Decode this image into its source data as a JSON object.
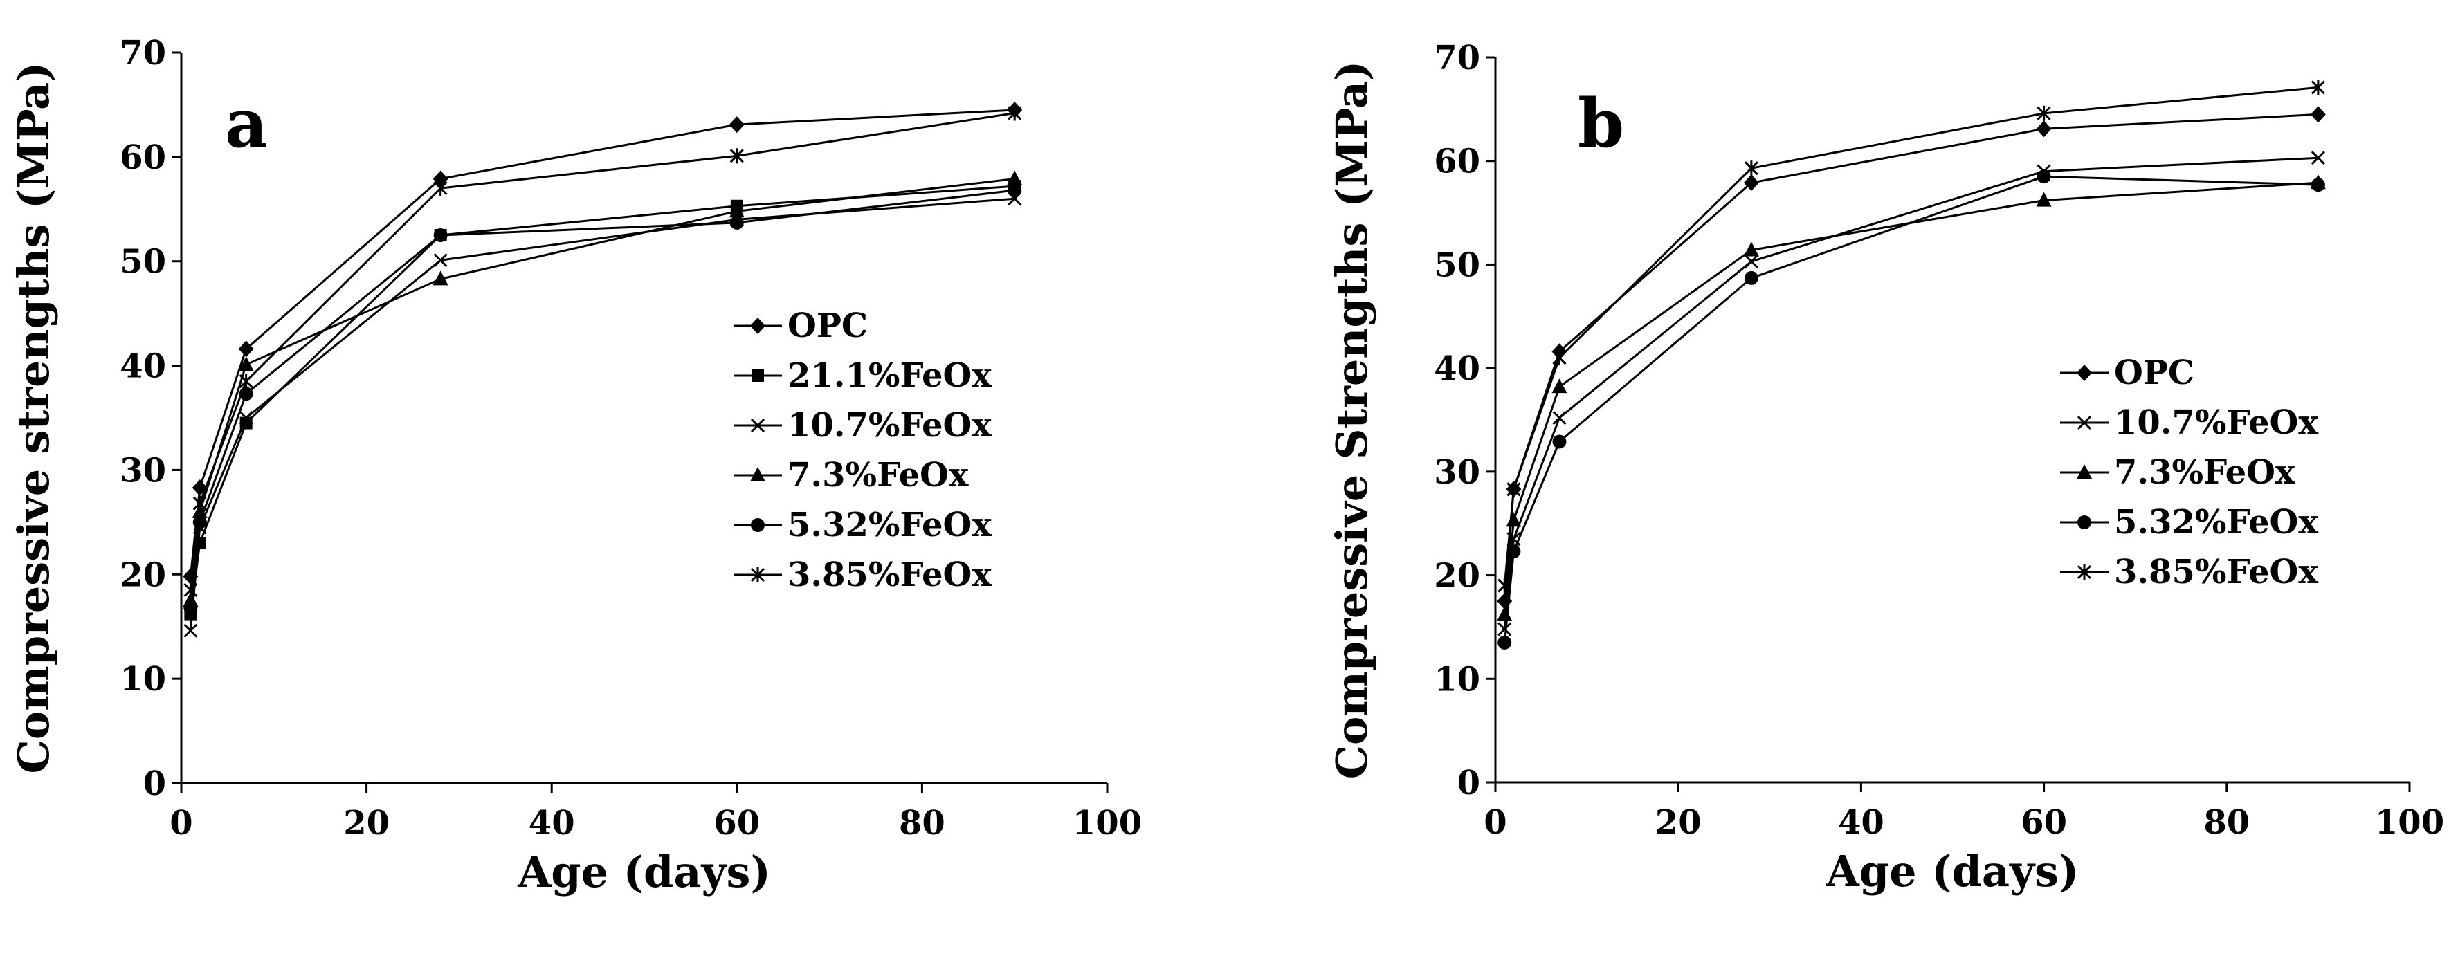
{
  "figure": {
    "background": "#ffffff",
    "line_color": "#000000"
  },
  "chart_data": [
    {
      "type": "line",
      "panel_label": "a",
      "xlabel": "Age (days)",
      "ylabel": "Compressive strengths (MPa)",
      "xlim": [
        0,
        100
      ],
      "ylim": [
        0,
        70
      ],
      "x_ticks": [
        "0",
        "20",
        "40",
        "60",
        "80",
        "100"
      ],
      "y_ticks": [
        "0",
        "10",
        "20",
        "30",
        "40",
        "50",
        "60",
        "70"
      ],
      "grid": false,
      "legend_position": "center-right",
      "x": [
        1,
        2,
        7,
        28,
        60,
        90
      ],
      "series": [
        {
          "name": "OPC",
          "marker": "diamond",
          "values": [
            19.8,
            28.3,
            41.6,
            57.9,
            63.1,
            64.5
          ]
        },
        {
          "name": "21.1%FeOx",
          "marker": "square",
          "values": [
            16.2,
            23.0,
            34.5,
            52.5,
            55.3,
            57.2
          ]
        },
        {
          "name": "10.7%FeOx",
          "marker": "x",
          "values": [
            14.6,
            24.5,
            35.0,
            50.1,
            54.0,
            56.0
          ]
        },
        {
          "name": "7.3%FeOx",
          "marker": "triangle",
          "values": [
            17.5,
            26.0,
            40.1,
            48.3,
            54.8,
            57.9
          ]
        },
        {
          "name": "5.32%FeOx",
          "marker": "circle",
          "values": [
            16.8,
            25.0,
            37.3,
            52.5,
            53.7,
            56.8
          ]
        },
        {
          "name": "3.85%FeOx",
          "marker": "asterisk",
          "values": [
            18.5,
            26.8,
            38.5,
            57.0,
            60.1,
            64.2
          ]
        }
      ]
    },
    {
      "type": "line",
      "panel_label": "b",
      "xlabel": "Age (days)",
      "ylabel": "Compressive  Strengths (MPa)",
      "xlim": [
        0,
        100
      ],
      "ylim": [
        0,
        70
      ],
      "x_ticks": [
        "0",
        "20",
        "40",
        "60",
        "80",
        "100"
      ],
      "y_ticks": [
        "0",
        "10",
        "20",
        "30",
        "40",
        "50",
        "60",
        "70"
      ],
      "grid": false,
      "legend_position": "center-right",
      "x": [
        1,
        2,
        7,
        28,
        60,
        90
      ],
      "series": [
        {
          "name": "OPC",
          "marker": "diamond",
          "values": [
            17.5,
            28.3,
            41.6,
            57.9,
            63.1,
            64.5
          ]
        },
        {
          "name": "10.7%FeOx",
          "marker": "x",
          "values": [
            14.8,
            23.5,
            35.2,
            50.3,
            59.0,
            60.3
          ]
        },
        {
          "name": "7.3%FeOx",
          "marker": "triangle",
          "values": [
            16.2,
            25.3,
            38.2,
            51.4,
            56.2,
            57.9
          ]
        },
        {
          "name": "5.32%FeOx",
          "marker": "circle",
          "values": [
            13.5,
            22.3,
            32.9,
            48.7,
            58.5,
            57.7
          ]
        },
        {
          "name": "3.85%FeOx",
          "marker": "asterisk",
          "values": [
            19.0,
            28.3,
            41.0,
            59.3,
            64.6,
            67.1
          ]
        }
      ]
    }
  ]
}
